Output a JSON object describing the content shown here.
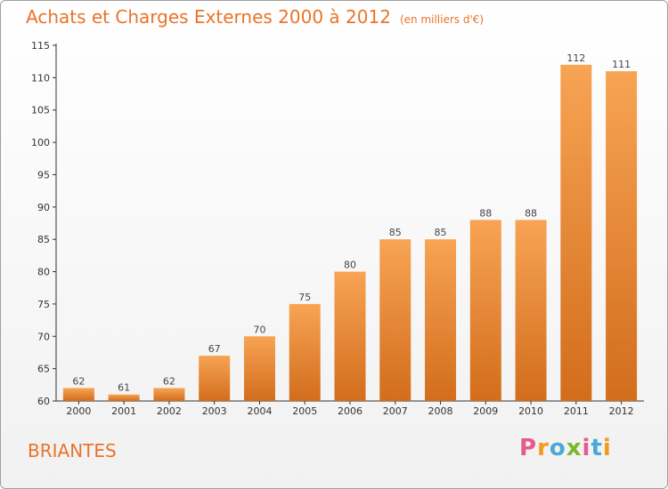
{
  "header": {
    "title": "Achats et Charges Externes 2000 à 2012",
    "unit": "(en milliers d'€)"
  },
  "footer": {
    "commune": "BRIANTES",
    "logo": "Proxiti"
  },
  "colors": {
    "accent": "#e8742a",
    "bar_top": "#f7a454",
    "bar_bottom": "#d26d1c"
  },
  "chart_data": {
    "type": "bar",
    "title": "Achats et Charges Externes 2000 à 2012",
    "subtitle": "(en milliers d'€)",
    "xlabel": "",
    "ylabel": "",
    "categories": [
      "2000",
      "2001",
      "2002",
      "2003",
      "2004",
      "2005",
      "2006",
      "2007",
      "2008",
      "2009",
      "2010",
      "2011",
      "2012"
    ],
    "values": [
      62,
      61,
      62,
      67,
      70,
      75,
      80,
      85,
      85,
      88,
      88,
      112,
      111
    ],
    "ylim": [
      60,
      115
    ],
    "yticks": [
      60,
      65,
      70,
      75,
      80,
      85,
      90,
      95,
      100,
      105,
      110,
      115
    ],
    "grid": false,
    "legend": "none"
  }
}
